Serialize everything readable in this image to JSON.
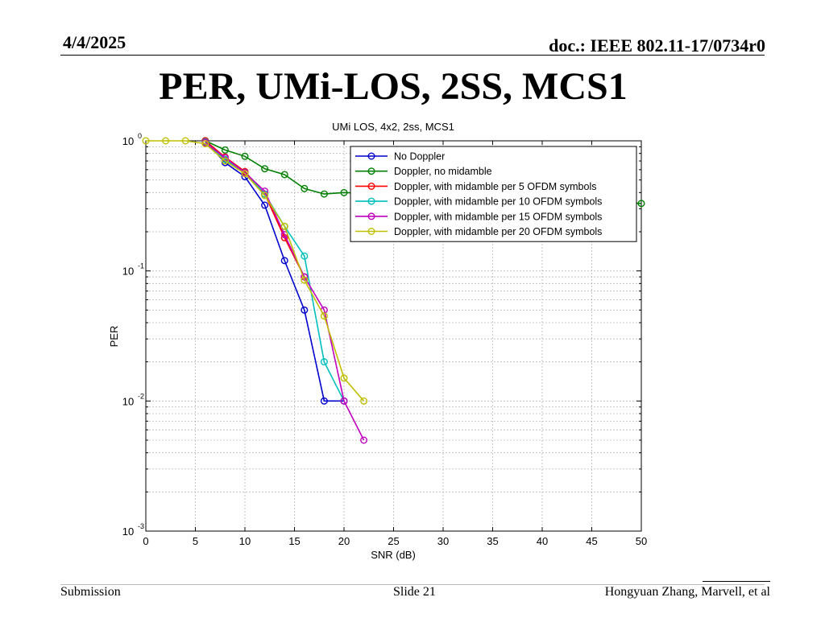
{
  "header": {
    "date": "4/4/2025",
    "doc": "doc.: IEEE 802.11-17/0734r0"
  },
  "slide": {
    "title": "PER, UMi-LOS, 2SS, MCS1"
  },
  "footer": {
    "left": "Submission",
    "center": "Slide 21",
    "right": "Hongyuan Zhang, Marvell, et al"
  },
  "chart_data": {
    "type": "line",
    "title": "UMi LOS, 4x2, 2ss, MCS1",
    "xlabel": "SNR (dB)",
    "ylabel": "PER",
    "xlim": [
      0,
      50
    ],
    "ylim": [
      0.001,
      1
    ],
    "yscale": "log",
    "xticks": [
      "0",
      "5",
      "10",
      "15",
      "20",
      "25",
      "30",
      "35",
      "40",
      "45",
      "50"
    ],
    "yticks": [
      {
        "base": "10",
        "exp": "0"
      },
      {
        "base": "10",
        "exp": "-1"
      },
      {
        "base": "10",
        "exp": "-2"
      },
      {
        "base": "10",
        "exp": "-3"
      }
    ],
    "grid": true,
    "legend_position": "top-right",
    "series": [
      {
        "name": "No Doppler",
        "color": "#0000cc",
        "x": [
          6,
          8,
          10,
          12,
          14,
          16,
          18,
          20
        ],
        "y": [
          1.0,
          0.68,
          0.53,
          0.32,
          0.12,
          0.05,
          0.01,
          0.01
        ]
      },
      {
        "name": "Doppler, no midamble",
        "color": "#007f00",
        "x": [
          6,
          8,
          10,
          12,
          14,
          16,
          18,
          20,
          50
        ],
        "y": [
          1.0,
          0.85,
          0.76,
          0.61,
          0.55,
          0.43,
          0.39,
          0.4,
          0.33
        ]
      },
      {
        "name": "Doppler, with midamble per 5 OFDM symbols",
        "color": "#ff0000",
        "x": [
          6,
          8,
          10,
          12,
          14,
          16
        ],
        "y": [
          1.0,
          0.75,
          0.58,
          0.39,
          0.18,
          0.09
        ]
      },
      {
        "name": "Doppler, with midamble per 10 OFDM symbols",
        "color": "#00bfbf",
        "x": [
          6,
          8,
          10,
          12,
          14,
          16,
          18,
          20
        ],
        "y": [
          0.98,
          0.72,
          0.57,
          0.39,
          0.22,
          0.13,
          0.02,
          0.01
        ]
      },
      {
        "name": "Doppler, with midamble per 15 OFDM symbols",
        "color": "#bf00bf",
        "x": [
          6,
          8,
          10,
          12,
          14,
          16,
          18,
          20,
          22
        ],
        "y": [
          0.97,
          0.74,
          0.57,
          0.41,
          0.19,
          0.09,
          0.05,
          0.01,
          0.005
        ]
      },
      {
        "name": "Doppler, with midamble per 20 OFDM symbols",
        "color": "#bfbf00",
        "x": [
          0,
          2,
          4,
          6,
          8,
          10,
          12,
          14,
          16,
          18,
          20,
          22
        ],
        "y": [
          1.0,
          1.0,
          1.0,
          0.95,
          0.7,
          0.56,
          0.38,
          0.22,
          0.085,
          0.045,
          0.015,
          0.01
        ]
      }
    ]
  }
}
